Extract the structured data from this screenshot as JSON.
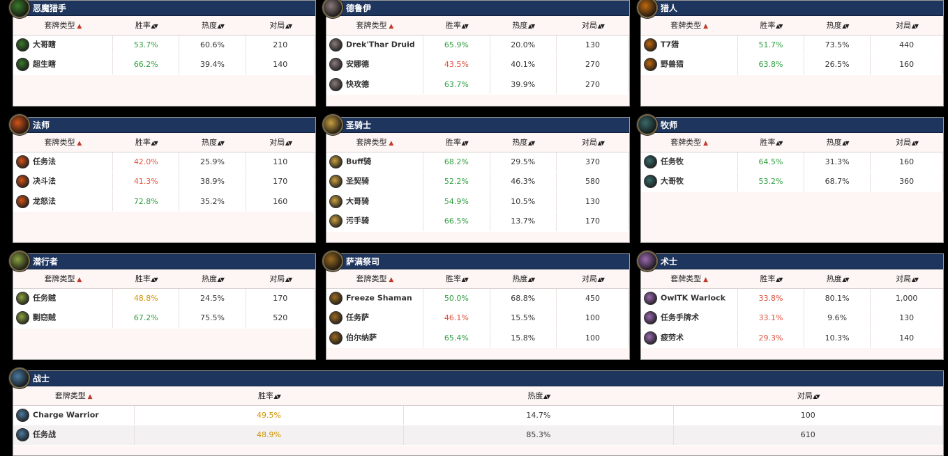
{
  "columns": {
    "deck_type": "套牌类型",
    "win_rate": "胜率",
    "popularity": "热度",
    "games": "对局"
  },
  "colors": {
    "header_bg": "#1e355e",
    "win_green": "#2e9e3e",
    "win_red": "#e0503c",
    "win_orange": "#d19200"
  },
  "panels": [
    {
      "title": "恶魔猎手",
      "icon": "demon-hunter-icon",
      "icon_color": "#3a7a2a",
      "rows": [
        {
          "name": "大哥瞎",
          "win": "53.7%",
          "win_class": "green",
          "pop": "60.6%",
          "games": "210"
        },
        {
          "name": "超生瞎",
          "win": "66.2%",
          "win_class": "green",
          "pop": "39.4%",
          "games": "140"
        }
      ]
    },
    {
      "title": "德鲁伊",
      "icon": "druid-icon",
      "icon_color": "#8a7a7a",
      "rows": [
        {
          "name": "Drek'Thar Druid",
          "win": "65.9%",
          "win_class": "green",
          "pop": "20.0%",
          "games": "130"
        },
        {
          "name": "安娜德",
          "win": "43.5%",
          "win_class": "red",
          "pop": "40.1%",
          "games": "270"
        },
        {
          "name": "快攻德",
          "win": "63.7%",
          "win_class": "green",
          "pop": "39.9%",
          "games": "270"
        }
      ]
    },
    {
      "title": "猎人",
      "icon": "hunter-icon",
      "icon_color": "#c06a10",
      "rows": [
        {
          "name": "T7猎",
          "win": "51.7%",
          "win_class": "green",
          "pop": "73.5%",
          "games": "440"
        },
        {
          "name": "野兽猎",
          "win": "63.8%",
          "win_class": "green",
          "pop": "26.5%",
          "games": "160"
        }
      ]
    },
    {
      "title": "法师",
      "icon": "mage-icon",
      "icon_color": "#d2541a",
      "rows": [
        {
          "name": "任务法",
          "win": "42.0%",
          "win_class": "red",
          "pop": "25.9%",
          "games": "110"
        },
        {
          "name": "决斗法",
          "win": "41.3%",
          "win_class": "red",
          "pop": "38.9%",
          "games": "170"
        },
        {
          "name": "龙怒法",
          "win": "72.8%",
          "win_class": "green",
          "pop": "35.2%",
          "games": "160"
        }
      ]
    },
    {
      "title": "圣骑士",
      "icon": "paladin-icon",
      "icon_color": "#caa040",
      "rows": [
        {
          "name": "Buff骑",
          "win": "68.2%",
          "win_class": "green",
          "pop": "29.5%",
          "games": "370"
        },
        {
          "name": "圣契骑",
          "win": "52.2%",
          "win_class": "green",
          "pop": "46.3%",
          "games": "580"
        },
        {
          "name": "大哥骑",
          "win": "54.9%",
          "win_class": "green",
          "pop": "10.5%",
          "games": "130"
        },
        {
          "name": "污手骑",
          "win": "66.5%",
          "win_class": "green",
          "pop": "13.7%",
          "games": "170"
        }
      ]
    },
    {
      "title": "牧师",
      "icon": "priest-icon",
      "icon_color": "#3a6a6a",
      "rows": [
        {
          "name": "任务牧",
          "win": "64.5%",
          "win_class": "green",
          "pop": "31.3%",
          "games": "160"
        },
        {
          "name": "大哥牧",
          "win": "53.2%",
          "win_class": "green",
          "pop": "68.7%",
          "games": "360"
        }
      ]
    },
    {
      "title": "潜行者",
      "icon": "rogue-icon",
      "icon_color": "#8aa040",
      "rows": [
        {
          "name": "任务贼",
          "win": "48.8%",
          "win_class": "orange",
          "pop": "24.5%",
          "games": "170"
        },
        {
          "name": "剽窃贼",
          "win": "67.2%",
          "win_class": "green",
          "pop": "75.5%",
          "games": "520"
        }
      ]
    },
    {
      "title": "萨满祭司",
      "icon": "shaman-icon",
      "icon_color": "#9a6a20",
      "rows": [
        {
          "name": "Freeze Shaman",
          "win": "50.0%",
          "win_class": "green",
          "pop": "68.8%",
          "games": "450"
        },
        {
          "name": "任务萨",
          "win": "46.1%",
          "win_class": "red",
          "pop": "15.5%",
          "games": "100"
        },
        {
          "name": "伯尔纳萨",
          "win": "65.4%",
          "win_class": "green",
          "pop": "15.8%",
          "games": "100"
        }
      ]
    },
    {
      "title": "术士",
      "icon": "warlock-icon",
      "icon_color": "#9a6ab0",
      "rows": [
        {
          "name": "OwlTK Warlock",
          "win": "33.8%",
          "win_class": "red",
          "pop": "80.1%",
          "games": "1,000"
        },
        {
          "name": "任务手牌术",
          "win": "33.1%",
          "win_class": "red",
          "pop": "9.6%",
          "games": "130"
        },
        {
          "name": "疲劳术",
          "win": "29.3%",
          "win_class": "red",
          "pop": "10.3%",
          "games": "140"
        }
      ]
    },
    {
      "title": "战士",
      "icon": "warrior-icon",
      "icon_color": "#4a7aa0",
      "rows": [
        {
          "name": "Charge Warrior",
          "win": "49.5%",
          "win_class": "orange",
          "pop": "14.7%",
          "games": "100"
        },
        {
          "name": "任务战",
          "win": "48.9%",
          "win_class": "orange",
          "pop": "85.3%",
          "games": "610"
        }
      ]
    }
  ]
}
